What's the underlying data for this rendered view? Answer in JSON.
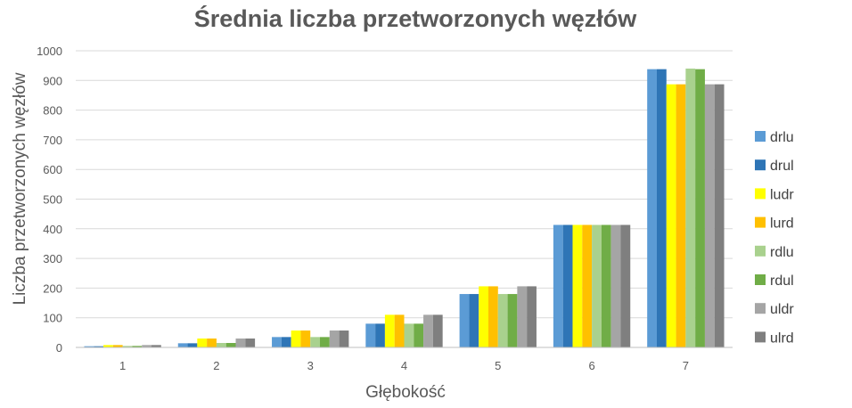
{
  "chart_data": {
    "type": "bar",
    "title": "Średnia liczba przetworzonych węzłów",
    "xlabel": "Głębokość",
    "ylabel": "Liczba przetworzonych węzłów",
    "ylim": [
      0,
      1000
    ],
    "yticks": [
      0,
      100,
      200,
      300,
      400,
      500,
      600,
      700,
      800,
      900,
      1000
    ],
    "grid": true,
    "legend_position": "right",
    "categories": [
      "1",
      "2",
      "3",
      "4",
      "5",
      "6",
      "7"
    ],
    "series": [
      {
        "name": "drlu",
        "color": "#5B9BD5",
        "values": [
          4,
          14,
          35,
          80,
          180,
          413,
          938
        ]
      },
      {
        "name": "drul",
        "color": "#2E75B6",
        "values": [
          4,
          14,
          35,
          80,
          180,
          413,
          938
        ]
      },
      {
        "name": "ludr",
        "color": "#FFFF00",
        "values": [
          8,
          30,
          57,
          110,
          206,
          413,
          887
        ]
      },
      {
        "name": "lurd",
        "color": "#FFC000",
        "values": [
          8,
          30,
          57,
          110,
          206,
          413,
          887
        ]
      },
      {
        "name": "rdlu",
        "color": "#A9D18E",
        "values": [
          5,
          15,
          35,
          80,
          180,
          413,
          940
        ]
      },
      {
        "name": "rdul",
        "color": "#70AD47",
        "values": [
          5,
          15,
          35,
          80,
          180,
          413,
          938
        ]
      },
      {
        "name": "uldr",
        "color": "#A5A5A5",
        "values": [
          8,
          30,
          57,
          110,
          206,
          413,
          887
        ]
      },
      {
        "name": "ulrd",
        "color": "#7F7F7F",
        "values": [
          8,
          30,
          57,
          110,
          206,
          413,
          887
        ]
      }
    ]
  }
}
